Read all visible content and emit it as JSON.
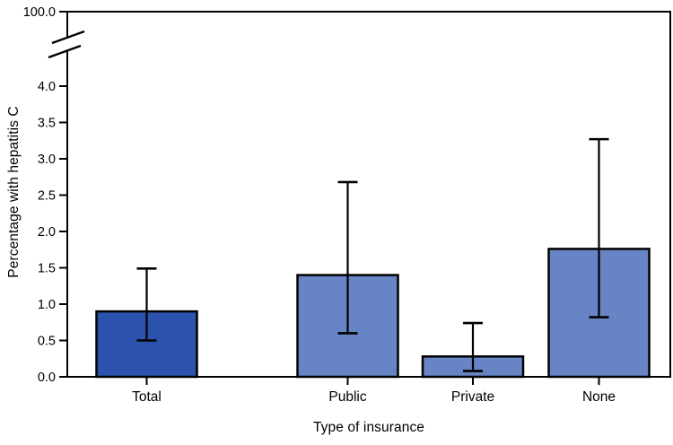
{
  "chart_data": {
    "type": "bar",
    "title": "",
    "xlabel": "Type of insurance",
    "ylabel": "Percentage with hepatitis C",
    "categories": [
      "Total",
      "Public",
      "Private",
      "None"
    ],
    "values": [
      0.9,
      1.4,
      0.28,
      1.76
    ],
    "error_low": [
      0.5,
      0.6,
      0.08,
      0.82
    ],
    "error_high": [
      1.49,
      2.68,
      0.74,
      3.27
    ],
    "bar_colors": [
      "#2B52AD",
      "#6784C4",
      "#6784C4",
      "#6784C4"
    ],
    "bar_border_color": "#000000",
    "error_bar_color": "#000000",
    "y_ticks": [
      0.0,
      0.5,
      1.0,
      1.5,
      2.0,
      2.5,
      3.0,
      3.5,
      4.0
    ],
    "y_tick_labels": [
      "0.0",
      "0.5",
      "1.0",
      "1.5",
      "2.0",
      "2.5",
      "3.0",
      "3.5",
      "4.0"
    ],
    "y_axis_break": {
      "present": true,
      "upper_tick_label": "100.0",
      "upper_tick_value": 100.0
    },
    "ylim": [
      0.0,
      4.0
    ],
    "grid": false,
    "legend": null
  }
}
